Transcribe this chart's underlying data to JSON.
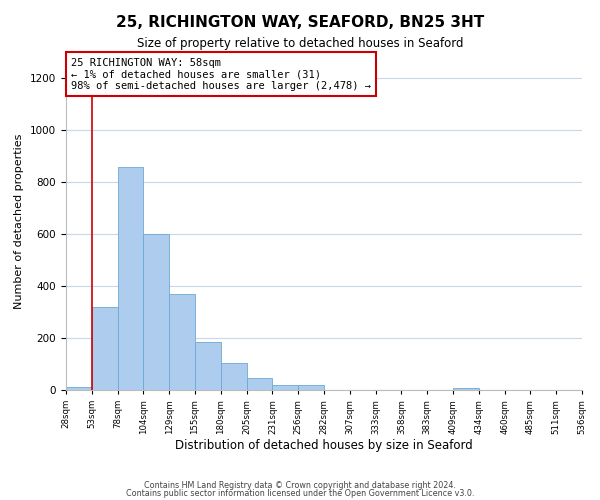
{
  "title": "25, RICHINGTON WAY, SEAFORD, BN25 3HT",
  "subtitle": "Size of property relative to detached houses in Seaford",
  "xlabel": "Distribution of detached houses by size in Seaford",
  "ylabel": "Number of detached properties",
  "bar_values": [
    10,
    320,
    860,
    600,
    370,
    185,
    105,
    47,
    20,
    20,
    0,
    0,
    0,
    0,
    0,
    8,
    0,
    0,
    0,
    0
  ],
  "bin_labels": [
    "28sqm",
    "53sqm",
    "78sqm",
    "104sqm",
    "129sqm",
    "155sqm",
    "180sqm",
    "205sqm",
    "231sqm",
    "256sqm",
    "282sqm",
    "307sqm",
    "333sqm",
    "358sqm",
    "383sqm",
    "409sqm",
    "434sqm",
    "460sqm",
    "485sqm",
    "511sqm",
    "536sqm"
  ],
  "bar_color": "#aeccee",
  "bar_edge_color": "#6aaad4",
  "vline_color": "#cc0000",
  "annotation_text": "25 RICHINGTON WAY: 58sqm\n← 1% of detached houses are smaller (31)\n98% of semi-detached houses are larger (2,478) →",
  "annotation_box_color": "#ffffff",
  "annotation_box_edge": "#cc0000",
  "ylim": [
    0,
    1300
  ],
  "yticks": [
    0,
    200,
    400,
    600,
    800,
    1000,
    1200
  ],
  "footer1": "Contains HM Land Registry data © Crown copyright and database right 2024.",
  "footer2": "Contains public sector information licensed under the Open Government Licence v3.0.",
  "background_color": "#ffffff",
  "grid_color": "#c8d8ea"
}
